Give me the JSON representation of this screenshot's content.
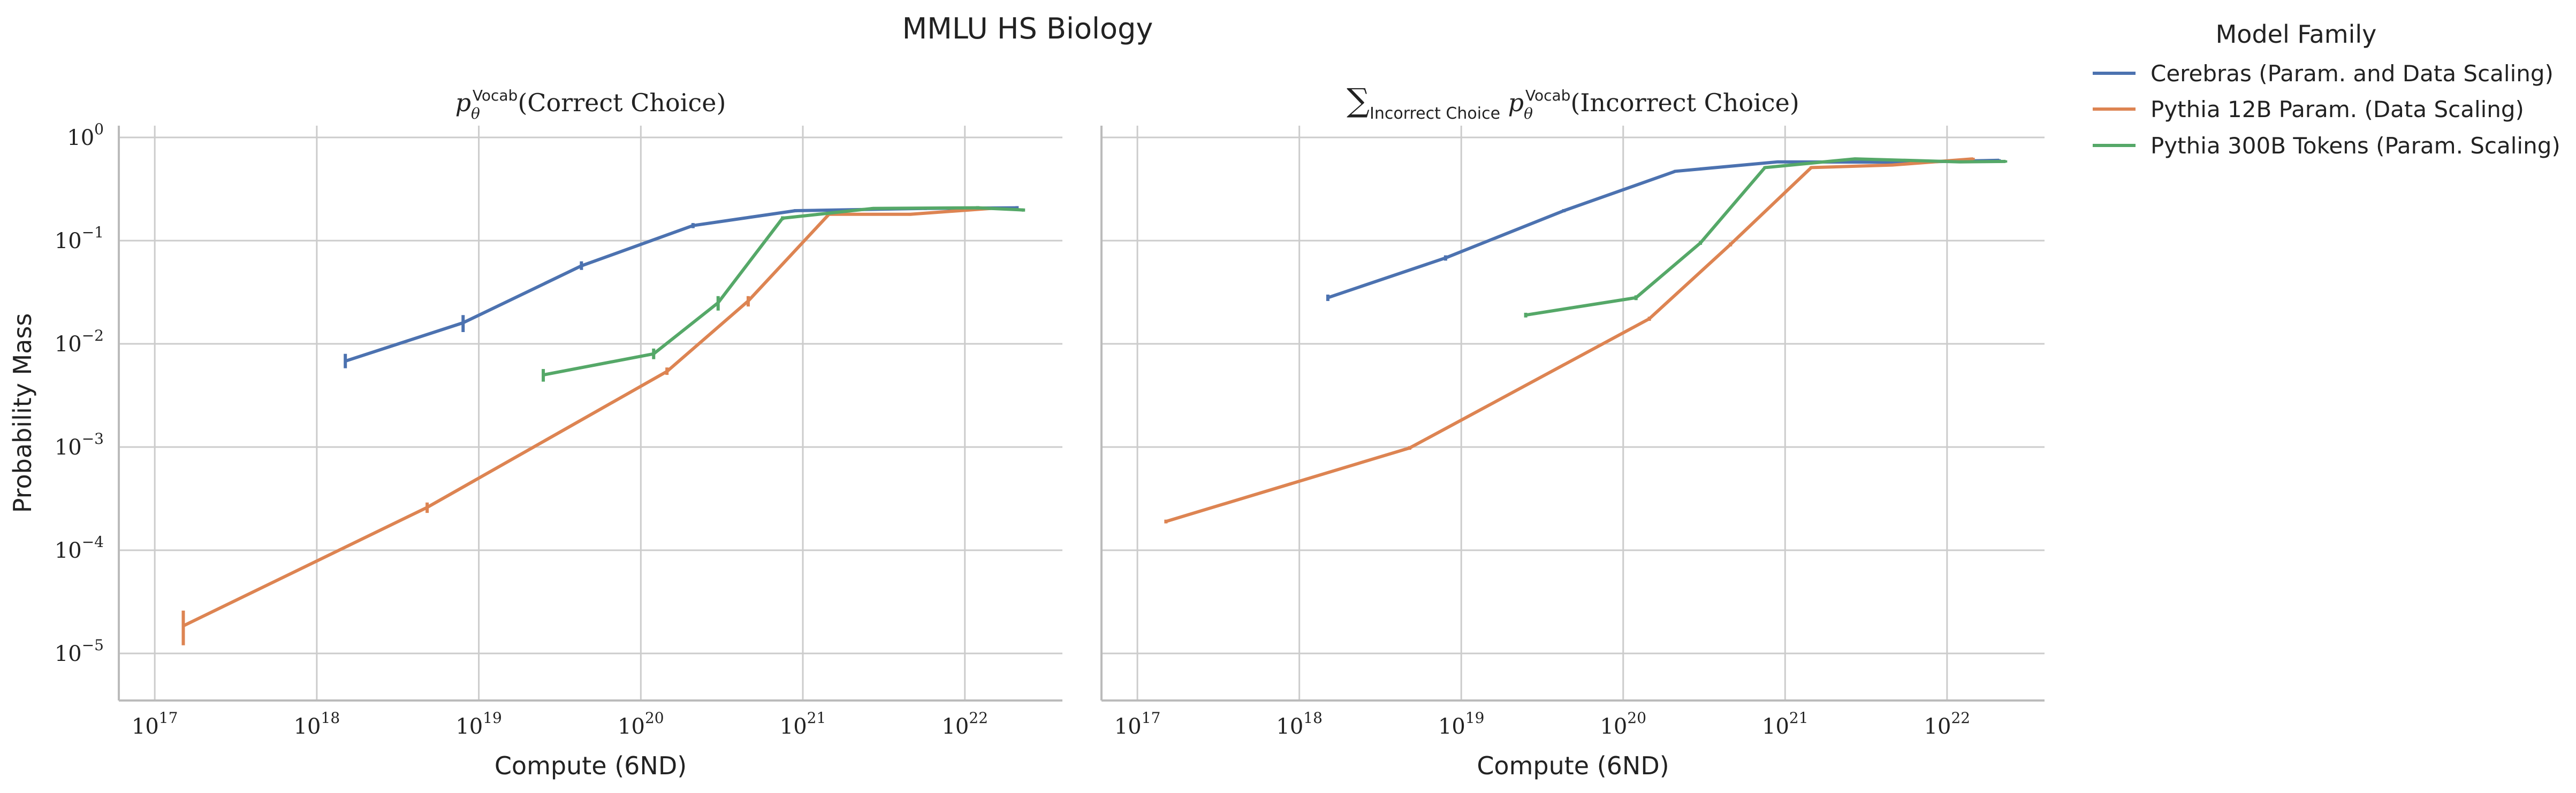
{
  "figure": {
    "title": "MMLU HS Biology",
    "legend": {
      "title": "Model Family",
      "placement": "outside-right",
      "entries": [
        {
          "label": "Cerebras (Param. and Data Scaling)",
          "color": "#4C72B0"
        },
        {
          "label": "Pythia 12B Param. (Data Scaling)",
          "color": "#DD8452"
        },
        {
          "label": "Pythia 300B Tokens (Param. Scaling)",
          "color": "#55A868"
        }
      ]
    }
  },
  "chart_data": [
    {
      "type": "line",
      "title": "p_θ^Vocab(Correct Choice)",
      "title_parts": {
        "symbol": "p",
        "sub": "θ",
        "sup": "Vocab",
        "rest": "(Correct Choice)"
      },
      "xlabel": "Compute (6ND)",
      "ylabel": "Probability Mass",
      "xscale": "log",
      "yscale": "log",
      "xlim": [
        6e+16,
        4e+22
      ],
      "ylim": [
        3.5e-06,
        1.3
      ],
      "grid": true,
      "x_ticks": [
        {
          "base": "10",
          "exp": "17",
          "value": 1e+17
        },
        {
          "base": "10",
          "exp": "18",
          "value": 1e+18
        },
        {
          "base": "10",
          "exp": "19",
          "value": 1e+19
        },
        {
          "base": "10",
          "exp": "20",
          "value": 1e+20
        },
        {
          "base": "10",
          "exp": "21",
          "value": 1e+21
        },
        {
          "base": "10",
          "exp": "22",
          "value": 1e+22
        }
      ],
      "y_ticks": [
        {
          "base": "10",
          "exp": "0",
          "value": 1
        },
        {
          "base": "10",
          "exp": "−1",
          "value": 0.1
        },
        {
          "base": "10",
          "exp": "−2",
          "value": 0.01
        },
        {
          "base": "10",
          "exp": "−3",
          "value": 0.001
        },
        {
          "base": "10",
          "exp": "−4",
          "value": 0.0001
        },
        {
          "base": "10",
          "exp": "−5",
          "value": 1e-05
        }
      ],
      "series": [
        {
          "name": "Cerebras (Param. and Data Scaling)",
          "color": "#4C72B0",
          "points": [
            {
              "x": 1.5e+18,
              "y": 0.0068,
              "lo": 0.0058,
              "hi": 0.008
            },
            {
              "x": 8e+18,
              "y": 0.016,
              "lo": 0.013,
              "hi": 0.019
            },
            {
              "x": 4.3e+19,
              "y": 0.057,
              "lo": 0.052,
              "hi": 0.063
            },
            {
              "x": 2.1e+20,
              "y": 0.14,
              "lo": 0.132,
              "hi": 0.148
            },
            {
              "x": 9e+20,
              "y": 0.195,
              "lo": 0.188,
              "hi": 0.202
            },
            {
              "x": 5.7e+21,
              "y": 0.205,
              "lo": 0.198,
              "hi": 0.212
            },
            {
              "x": 2.1e+22,
              "y": 0.208,
              "lo": 0.2,
              "hi": 0.216
            }
          ]
        },
        {
          "name": "Pythia 12B Param. (Data Scaling)",
          "color": "#DD8452",
          "points": [
            {
              "x": 1.5e+17,
              "y": 1.85e-05,
              "lo": 1.2e-05,
              "hi": 2.6e-05
            },
            {
              "x": 4.8e+18,
              "y": 0.00026,
              "lo": 0.00023,
              "hi": 0.00029
            },
            {
              "x": 1.45e+20,
              "y": 0.0054,
              "lo": 0.005,
              "hi": 0.0059
            },
            {
              "x": 4.6e+20,
              "y": 0.026,
              "lo": 0.023,
              "hi": 0.029
            },
            {
              "x": 1.45e+21,
              "y": 0.18,
              "lo": 0.174,
              "hi": 0.186
            },
            {
              "x": 4.6e+21,
              "y": 0.18,
              "lo": 0.174,
              "hi": 0.186
            },
            {
              "x": 1.45e+22,
              "y": 0.205,
              "lo": 0.198,
              "hi": 0.212
            }
          ]
        },
        {
          "name": "Pythia 300B Tokens (Param. Scaling)",
          "color": "#55A868",
          "points": [
            {
              "x": 2.5e+19,
              "y": 0.005,
              "lo": 0.0043,
              "hi": 0.0057
            },
            {
              "x": 1.2e+20,
              "y": 0.008,
              "lo": 0.0071,
              "hi": 0.009
            },
            {
              "x": 3e+20,
              "y": 0.025,
              "lo": 0.021,
              "hi": 0.029
            },
            {
              "x": 7.5e+20,
              "y": 0.165,
              "lo": 0.158,
              "hi": 0.172
            },
            {
              "x": 2.7e+21,
              "y": 0.205,
              "lo": 0.198,
              "hi": 0.212
            },
            {
              "x": 1.2e+22,
              "y": 0.208,
              "lo": 0.2,
              "hi": 0.216
            },
            {
              "x": 2.3e+22,
              "y": 0.198,
              "lo": 0.191,
              "hi": 0.205
            }
          ]
        }
      ]
    },
    {
      "type": "line",
      "title": "∑_Incorrect Choice p_θ^Vocab(Incorrect Choice)",
      "title_parts": {
        "sum": "∑",
        "sumsub": "Incorrect Choice",
        "symbol": "p",
        "sub": "θ",
        "sup": "Vocab",
        "rest": "(Incorrect Choice)"
      },
      "xlabel": "Compute (6ND)",
      "ylabel": "",
      "xscale": "log",
      "yscale": "log",
      "xlim": [
        6e+16,
        4e+22
      ],
      "ylim": [
        3.5e-06,
        1.3
      ],
      "grid": true,
      "x_ticks": [
        {
          "base": "10",
          "exp": "17",
          "value": 1e+17
        },
        {
          "base": "10",
          "exp": "18",
          "value": 1e+18
        },
        {
          "base": "10",
          "exp": "19",
          "value": 1e+19
        },
        {
          "base": "10",
          "exp": "20",
          "value": 1e+20
        },
        {
          "base": "10",
          "exp": "21",
          "value": 1e+21
        },
        {
          "base": "10",
          "exp": "22",
          "value": 1e+22
        }
      ],
      "y_ticks": [],
      "series": [
        {
          "name": "Cerebras (Param. and Data Scaling)",
          "color": "#4C72B0",
          "points": [
            {
              "x": 1.5e+18,
              "y": 0.028,
              "lo": 0.026,
              "hi": 0.03
            },
            {
              "x": 8e+18,
              "y": 0.068,
              "lo": 0.064,
              "hi": 0.072
            },
            {
              "x": 4.3e+19,
              "y": 0.195,
              "lo": 0.188,
              "hi": 0.202
            },
            {
              "x": 2.1e+20,
              "y": 0.47,
              "lo": 0.455,
              "hi": 0.485
            },
            {
              "x": 9e+20,
              "y": 0.58,
              "lo": 0.565,
              "hi": 0.595
            },
            {
              "x": 5.7e+21,
              "y": 0.575,
              "lo": 0.56,
              "hi": 0.59
            },
            {
              "x": 2.1e+22,
              "y": 0.6,
              "lo": 0.585,
              "hi": 0.615
            }
          ]
        },
        {
          "name": "Pythia 12B Param. (Data Scaling)",
          "color": "#DD8452",
          "points": [
            {
              "x": 1.5e+17,
              "y": 0.00019,
              "lo": 0.000182,
              "hi": 0.000198
            },
            {
              "x": 4.8e+18,
              "y": 0.00098,
              "lo": 0.00094,
              "hi": 0.00102
            },
            {
              "x": 1.45e+20,
              "y": 0.0175,
              "lo": 0.0167,
              "hi": 0.0183
            },
            {
              "x": 4.6e+20,
              "y": 0.092,
              "lo": 0.088,
              "hi": 0.096
            },
            {
              "x": 1.45e+21,
              "y": 0.51,
              "lo": 0.495,
              "hi": 0.525
            },
            {
              "x": 4.6e+21,
              "y": 0.54,
              "lo": 0.525,
              "hi": 0.555
            },
            {
              "x": 1.45e+22,
              "y": 0.62,
              "lo": 0.605,
              "hi": 0.635
            }
          ]
        },
        {
          "name": "Pythia 300B Tokens (Param. Scaling)",
          "color": "#55A868",
          "points": [
            {
              "x": 2.5e+19,
              "y": 0.019,
              "lo": 0.018,
              "hi": 0.02
            },
            {
              "x": 1.2e+20,
              "y": 0.028,
              "lo": 0.0265,
              "hi": 0.0295
            },
            {
              "x": 3e+20,
              "y": 0.095,
              "lo": 0.091,
              "hi": 0.099
            },
            {
              "x": 7.5e+20,
              "y": 0.51,
              "lo": 0.495,
              "hi": 0.525
            },
            {
              "x": 2.7e+21,
              "y": 0.62,
              "lo": 0.605,
              "hi": 0.635
            },
            {
              "x": 1.2e+22,
              "y": 0.58,
              "lo": 0.565,
              "hi": 0.595
            },
            {
              "x": 2.3e+22,
              "y": 0.585,
              "lo": 0.57,
              "hi": 0.6
            }
          ]
        }
      ]
    }
  ]
}
